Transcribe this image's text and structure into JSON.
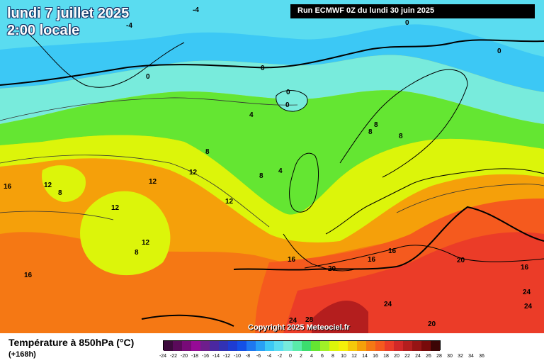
{
  "title_date": "lundi 7 juillet 2025",
  "title_time": "2:00 locale",
  "run_banner": "Run ECMWF 0Z du lundi 30 juin 2025",
  "copyright": "Copyright 2025 Meteociel.fr",
  "legend": {
    "title": "Température à 850hPa (°C)",
    "subtitle": "(+168h)",
    "ticks": [
      "-24",
      "-22",
      "-20",
      "-18",
      "-16",
      "-14",
      "-12",
      "-10",
      "-8",
      "-6",
      "-4",
      "-2",
      "0",
      "2",
      "4",
      "6",
      "8",
      "10",
      "12",
      "14",
      "16",
      "18",
      "20",
      "22",
      "24",
      "26",
      "28",
      "30",
      "32",
      "34",
      "36"
    ],
    "colors": [
      "#3c0a3c",
      "#5a0a5a",
      "#780a78",
      "#960a96",
      "#6e1e8c",
      "#4b28a0",
      "#3232b4",
      "#1e3cd2",
      "#1450e6",
      "#1e78f0",
      "#28a0f5",
      "#3cc8f5",
      "#5adcf0",
      "#78ebdc",
      "#5aebaa",
      "#3cdc6e",
      "#64e632",
      "#a0f028",
      "#dcf50a",
      "#f5f00a",
      "#f5c80a",
      "#f5a00a",
      "#f57814",
      "#f55a1e",
      "#eb3c28",
      "#d22828",
      "#b41e1e",
      "#961414",
      "#780a0a",
      "#3c0505"
    ]
  },
  "contour_labels": [
    {
      "text": "-4",
      "name": "label-minus4-a"
    },
    {
      "text": "-4",
      "name": "label-minus4-b"
    },
    {
      "text": "0",
      "name": "label-0-a"
    },
    {
      "text": "0",
      "name": "label-0-b"
    },
    {
      "text": "0",
      "name": "label-0-c"
    },
    {
      "text": "0",
      "name": "label-0-d"
    },
    {
      "text": "0",
      "name": "label-0-e"
    },
    {
      "text": "0",
      "name": "label-0-f"
    },
    {
      "text": "4",
      "name": "label-4-a"
    },
    {
      "text": "4",
      "name": "label-4-b"
    },
    {
      "text": "8",
      "name": "label-8-a"
    },
    {
      "text": "8",
      "name": "label-8-b"
    },
    {
      "text": "8",
      "name": "label-8-c"
    },
    {
      "text": "8",
      "name": "label-8-d"
    },
    {
      "text": "8",
      "name": "label-8-e"
    },
    {
      "text": "8",
      "name": "label-8-f"
    },
    {
      "text": "8",
      "name": "label-8-g"
    },
    {
      "text": "12",
      "name": "label-12-a"
    },
    {
      "text": "12",
      "name": "label-12-b"
    },
    {
      "text": "12",
      "name": "label-12-c"
    },
    {
      "text": "12",
      "name": "label-12-d"
    },
    {
      "text": "12",
      "name": "label-12-e"
    },
    {
      "text": "12",
      "name": "label-12-f"
    },
    {
      "text": "16",
      "name": "label-16-a"
    },
    {
      "text": "16",
      "name": "label-16-b"
    },
    {
      "text": "16",
      "name": "label-16-c"
    },
    {
      "text": "16",
      "name": "label-16-d"
    },
    {
      "text": "16",
      "name": "label-16-e"
    },
    {
      "text": "16",
      "name": "label-16-f"
    },
    {
      "text": "20",
      "name": "label-20-a"
    },
    {
      "text": "20",
      "name": "label-20-b"
    },
    {
      "text": "20",
      "name": "label-20-c"
    },
    {
      "text": "24",
      "name": "label-24-a"
    },
    {
      "text": "24",
      "name": "label-24-b"
    },
    {
      "text": "24",
      "name": "label-24-c"
    },
    {
      "text": "24",
      "name": "label-24-d"
    },
    {
      "text": "28",
      "name": "label-28-a"
    }
  ]
}
